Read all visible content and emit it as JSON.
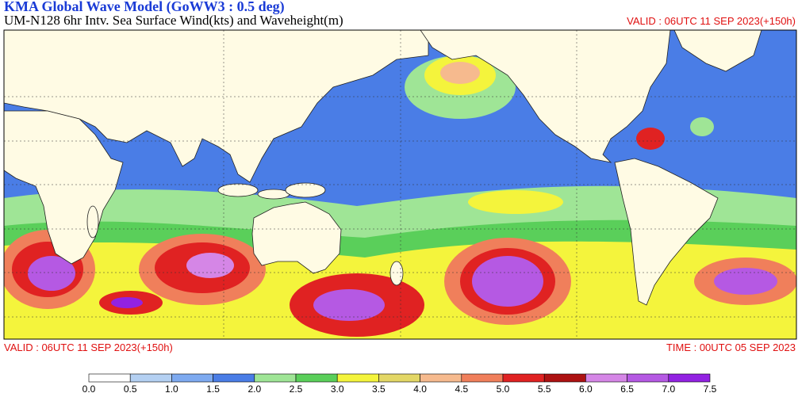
{
  "header": {
    "title": "KMA  Global Wave Model (GoWW3 : 0.5 deg)",
    "subtitle": "UM-N128  6hr Intv. Sea Surface Wind(kts) and Waveheight(m)",
    "valid": "VALID : 06UTC 11 SEP 2023(+150h)"
  },
  "footer": {
    "valid": "VALID : 06UTC 11 SEP 2023(+150h)",
    "time": "TIME : 00UTC 05 SEP 2023"
  },
  "legend": {
    "labels": [
      "0.0",
      "0.5",
      "1.0",
      "1.5",
      "2.0",
      "2.5",
      "3.0",
      "3.5",
      "4.0",
      "4.5",
      "5.0",
      "5.5",
      "6.0",
      "6.5",
      "7.0",
      "7.5"
    ],
    "colors": [
      "#ffffff",
      "#b4d0f2",
      "#7eaaf0",
      "#4a7de6",
      "#9fe596",
      "#5acf5a",
      "#f4f43c",
      "#e3d766",
      "#f6ba8e",
      "#f07f5b",
      "#e02222",
      "#ad1212",
      "#d586e6",
      "#b559e3",
      "#9222e2"
    ]
  }
}
